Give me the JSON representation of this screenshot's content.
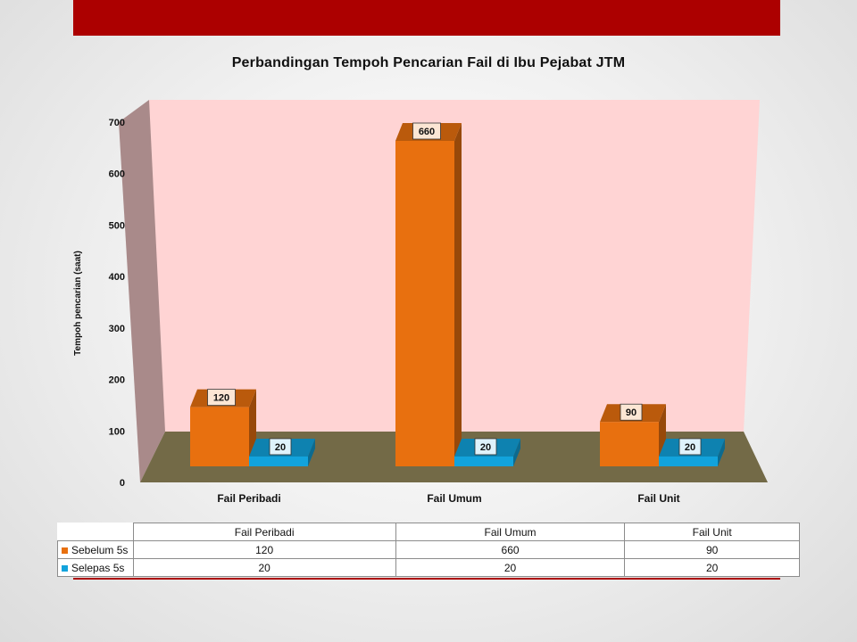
{
  "chart_data": {
    "type": "bar",
    "title": "Perbandingan Tempoh Pencarian Fail di Ibu Pejabat JTM",
    "ylabel": "Tempoh pencarian (saat)",
    "xlabel": "",
    "categories": [
      "Fail Peribadi",
      "Fail Umum",
      "Fail Unit"
    ],
    "series": [
      {
        "name": "Sebelum 5s",
        "values": [
          120,
          660,
          90
        ],
        "color": "#e8700f"
      },
      {
        "name": "Selepas 5s",
        "values": [
          20,
          20,
          20
        ],
        "color": "#12a3dc"
      }
    ],
    "ylim": [
      0,
      700
    ],
    "yticks": [
      0,
      100,
      200,
      300,
      400,
      500,
      600,
      700
    ],
    "grid": false,
    "legend": "data-table",
    "wall_color": "#ffd4d4",
    "side_wall_color": "#a98a8a",
    "floor_color": "#736a47"
  },
  "table": {
    "headers": [
      "Fail Peribadi",
      "Fail Umum",
      "Fail Unit"
    ]
  },
  "colors": {
    "accent_bar": "#ac0000"
  }
}
